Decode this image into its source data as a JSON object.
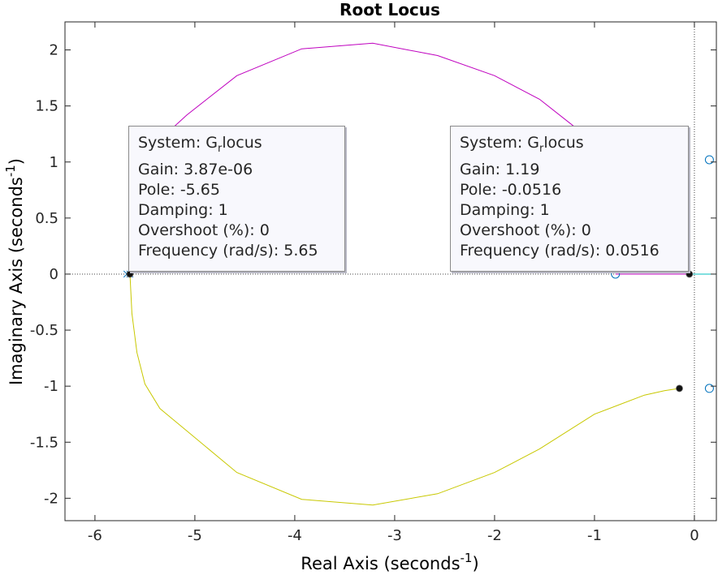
{
  "chart_data": {
    "type": "line",
    "title": "Root Locus",
    "xlabel": "Real Axis (seconds",
    "ylabel": "Imaginary Axis (seconds",
    "unit_exponent": "-1",
    "xlim": [
      -6.3,
      0.22
    ],
    "ylim": [
      -2.2,
      2.25
    ],
    "xticks": [
      -6,
      -5,
      -4,
      -3,
      -2,
      -1,
      0
    ],
    "yticks": [
      -2,
      -1.5,
      -1,
      -0.5,
      0,
      0.5,
      1,
      1.5,
      2
    ],
    "xticklabels": [
      "-6",
      "-5",
      "-4",
      "-3",
      "-2",
      "-1",
      "0"
    ],
    "yticklabels": [
      "-2",
      "-1.5",
      "-1",
      "-0.5",
      "0",
      "0.5",
      "1",
      "1.5",
      "2"
    ],
    "grid": false,
    "series": [
      {
        "color": "#bf00bf",
        "x": [
          -5.65,
          -5.63,
          -5.58,
          -5.5,
          -5.35,
          -5.08,
          -4.58,
          -3.93,
          -3.22,
          -2.57,
          -2.0,
          -1.55,
          -1.18
        ],
        "y": [
          0.0,
          0.4,
          0.75,
          1.0,
          1.2,
          1.42,
          1.77,
          2.01,
          2.06,
          1.95,
          1.77,
          1.56,
          1.3
        ]
      },
      {
        "color": "#c8c800",
        "x": [
          -5.65,
          -5.63,
          -5.58,
          -5.5,
          -5.35,
          -5.08,
          -4.58,
          -3.93,
          -3.22,
          -2.57,
          -2.0,
          -1.55,
          -1.0,
          -0.5,
          -0.3,
          -0.15
        ],
        "y": [
          0.0,
          -0.35,
          -0.7,
          -0.98,
          -1.2,
          -1.4,
          -1.77,
          -2.01,
          -2.06,
          -1.96,
          -1.77,
          -1.56,
          -1.25,
          -1.08,
          -1.04,
          -1.02
        ]
      },
      {
        "color": "#bf00bf",
        "x": [
          -0.79,
          -0.05
        ],
        "y": [
          0.0,
          0.0
        ]
      },
      {
        "color": "#00bfbf",
        "x": [
          -0.05,
          0.22
        ],
        "y": [
          0.0,
          0.0
        ]
      }
    ],
    "poles": [
      {
        "x": -5.68,
        "y": 0
      },
      {
        "x": -5.65,
        "y": 0
      }
    ],
    "zeros": [
      {
        "x": -0.79,
        "y": 0
      },
      {
        "x": 0.15,
        "y": 1.02
      },
      {
        "x": 0.15,
        "y": -1.02
      }
    ],
    "markers": [
      {
        "x": -5.65,
        "y": 0
      },
      {
        "x": -0.05,
        "y": 0
      },
      {
        "x": -0.15,
        "y": -1.02
      }
    ],
    "datatips": [
      {
        "system_prefix": "System: G",
        "system_sub": "r",
        "system_suffix": "locus",
        "gain": "Gain: 3.87e-06",
        "pole": "Pole: -5.65",
        "damping": "Damping: 1",
        "overshoot": "Overshoot (%): 0",
        "frequency": "Frequency (rad/s): 5.65"
      },
      {
        "system_prefix": "System: G",
        "system_sub": "r",
        "system_suffix": "locus",
        "gain": "Gain: 1.19",
        "pole": "Pole: -0.0516",
        "damping": "Damping: 1",
        "overshoot": "Overshoot (%): 0",
        "frequency": "Frequency (rad/s): 0.0516"
      }
    ]
  }
}
